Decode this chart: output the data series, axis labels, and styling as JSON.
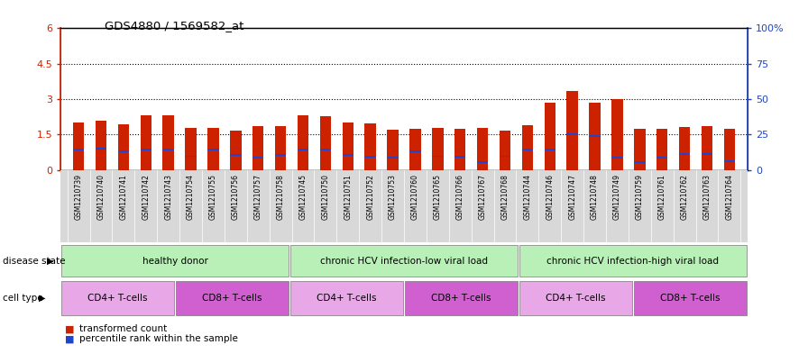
{
  "title": "GDS4880 / 1569582_at",
  "samples": [
    "GSM1210739",
    "GSM1210740",
    "GSM1210741",
    "GSM1210742",
    "GSM1210743",
    "GSM1210754",
    "GSM1210755",
    "GSM1210756",
    "GSM1210757",
    "GSM1210758",
    "GSM1210745",
    "GSM1210750",
    "GSM1210751",
    "GSM1210752",
    "GSM1210753",
    "GSM1210760",
    "GSM1210765",
    "GSM1210766",
    "GSM1210767",
    "GSM1210768",
    "GSM1210744",
    "GSM1210746",
    "GSM1210747",
    "GSM1210748",
    "GSM1210749",
    "GSM1210759",
    "GSM1210761",
    "GSM1210762",
    "GSM1210763",
    "GSM1210764"
  ],
  "red_values": [
    2.0,
    2.1,
    1.95,
    2.3,
    2.3,
    1.78,
    1.78,
    1.68,
    1.85,
    1.85,
    2.3,
    2.28,
    2.0,
    1.98,
    1.7,
    1.73,
    1.78,
    1.73,
    1.78,
    1.68,
    1.9,
    2.85,
    3.35,
    2.85,
    3.0,
    1.73,
    1.73,
    1.8,
    1.85,
    1.73
  ],
  "blue_values": [
    0.85,
    0.9,
    0.78,
    0.85,
    0.85,
    0.58,
    0.85,
    0.65,
    0.52,
    0.62,
    0.85,
    0.85,
    0.65,
    0.55,
    0.52,
    0.78,
    0.58,
    0.55,
    0.32,
    0.58,
    0.85,
    0.88,
    1.52,
    1.45,
    0.52,
    0.32,
    0.52,
    0.68,
    0.68,
    0.38
  ],
  "ylim_left": [
    0,
    6
  ],
  "ylim_right": [
    0,
    100
  ],
  "yticks_left": [
    0,
    1.5,
    3.0,
    4.5,
    6.0
  ],
  "ytick_labels_left": [
    "0",
    "1.5",
    "3",
    "4.5",
    "6"
  ],
  "yticks_right": [
    0,
    25,
    50,
    75,
    100
  ],
  "ytick_labels_right": [
    "0",
    "25",
    "50",
    "75",
    "100%"
  ],
  "bar_color": "#cc2200",
  "blue_color": "#2244cc",
  "bg_color": "#ffffff",
  "left_axis_color": "#cc2200",
  "right_axis_color": "#2244bb",
  "disease_state_groups": [
    {
      "label": "healthy donor",
      "start": 0,
      "end": 10
    },
    {
      "label": "chronic HCV infection-low viral load",
      "start": 10,
      "end": 20
    },
    {
      "label": "chronic HCV infection-high viral load",
      "start": 20,
      "end": 30
    }
  ],
  "cell_type_groups": [
    {
      "label": "CD4+ T-cells",
      "start": 0,
      "end": 5,
      "type": "CD4"
    },
    {
      "label": "CD8+ T-cells",
      "start": 5,
      "end": 10,
      "type": "CD8"
    },
    {
      "label": "CD4+ T-cells",
      "start": 10,
      "end": 15,
      "type": "CD4"
    },
    {
      "label": "CD8+ T-cells",
      "start": 15,
      "end": 20,
      "type": "CD8"
    },
    {
      "label": "CD4+ T-cells",
      "start": 20,
      "end": 25,
      "type": "CD4"
    },
    {
      "label": "CD8+ T-cells",
      "start": 25,
      "end": 30,
      "type": "CD8"
    }
  ],
  "ds_color": "#b8f0b8",
  "ct_cd4_color": "#e8a8e8",
  "ct_cd8_color": "#d060d0",
  "xtick_bg_color": "#d8d8d8"
}
